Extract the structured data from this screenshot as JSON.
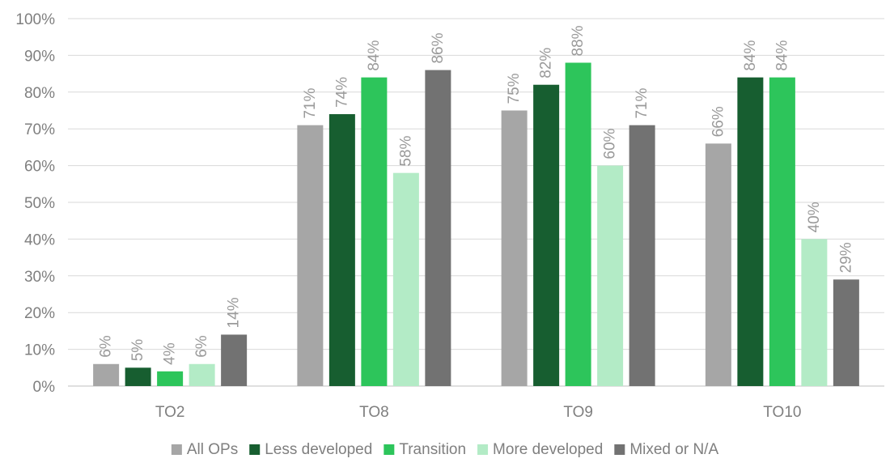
{
  "chart_data": {
    "type": "bar",
    "title": "",
    "xlabel": "",
    "ylabel": "",
    "ylim": [
      0,
      100
    ],
    "y_tick_labels": [
      "0%",
      "10%",
      "20%",
      "30%",
      "40%",
      "50%",
      "60%",
      "70%",
      "80%",
      "90%",
      "100%"
    ],
    "categories": [
      "TO2",
      "TO8",
      "TO9",
      "TO10"
    ],
    "grid": true,
    "legend_position": "bottom",
    "series": [
      {
        "name": "All OPs",
        "color": "#a6a6a6",
        "values": [
          6,
          71,
          75,
          66
        ],
        "labels": [
          "6%",
          "71%",
          "75%",
          "66%"
        ]
      },
      {
        "name": "Less developed",
        "color": "#175e30",
        "values": [
          5,
          74,
          82,
          84
        ],
        "labels": [
          "5%",
          "74%",
          "82%",
          "84%"
        ]
      },
      {
        "name": "Transition",
        "color": "#2dc55b",
        "values": [
          4,
          84,
          88,
          84
        ],
        "labels": [
          "4%",
          "84%",
          "88%",
          "84%"
        ]
      },
      {
        "name": "More developed",
        "color": "#b3ebc6",
        "values": [
          6,
          58,
          60,
          40
        ],
        "labels": [
          "6%",
          "58%",
          "60%",
          "40%"
        ]
      },
      {
        "name": "Mixed or N/A",
        "color": "#727272",
        "values": [
          14,
          86,
          71,
          29
        ],
        "labels": [
          "14%",
          "86%",
          "71%",
          "29%"
        ]
      }
    ]
  }
}
